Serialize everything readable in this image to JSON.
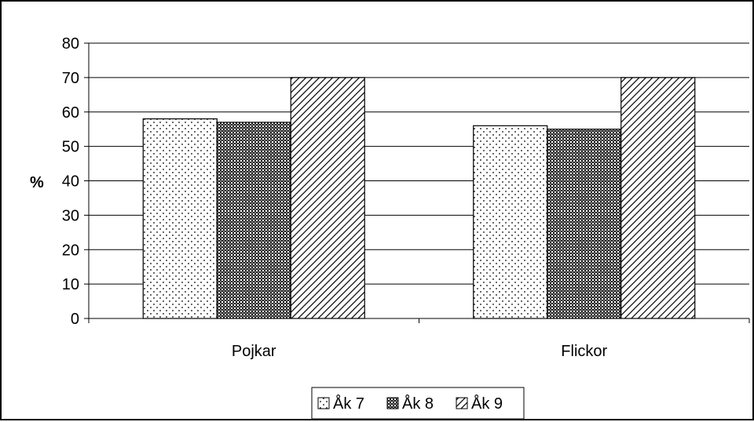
{
  "chart_data": {
    "type": "bar",
    "title": "",
    "xlabel": "",
    "ylabel": "%",
    "ylim": [
      0,
      80
    ],
    "yticks": [
      0,
      10,
      20,
      30,
      40,
      50,
      60,
      70,
      80
    ],
    "grid": "horizontal",
    "legend_position": "bottom",
    "categories": [
      "Pojkar",
      "Flickor"
    ],
    "series": [
      {
        "name": "Åk 7",
        "values": [
          58,
          56
        ],
        "pattern": "dots"
      },
      {
        "name": "Åk 8",
        "values": [
          57,
          55
        ],
        "pattern": "crosshatch"
      },
      {
        "name": "Åk 9",
        "values": [
          70,
          70
        ],
        "pattern": "diagonal"
      }
    ]
  },
  "colors": {
    "line": "#000000",
    "background": "#ffffff"
  }
}
